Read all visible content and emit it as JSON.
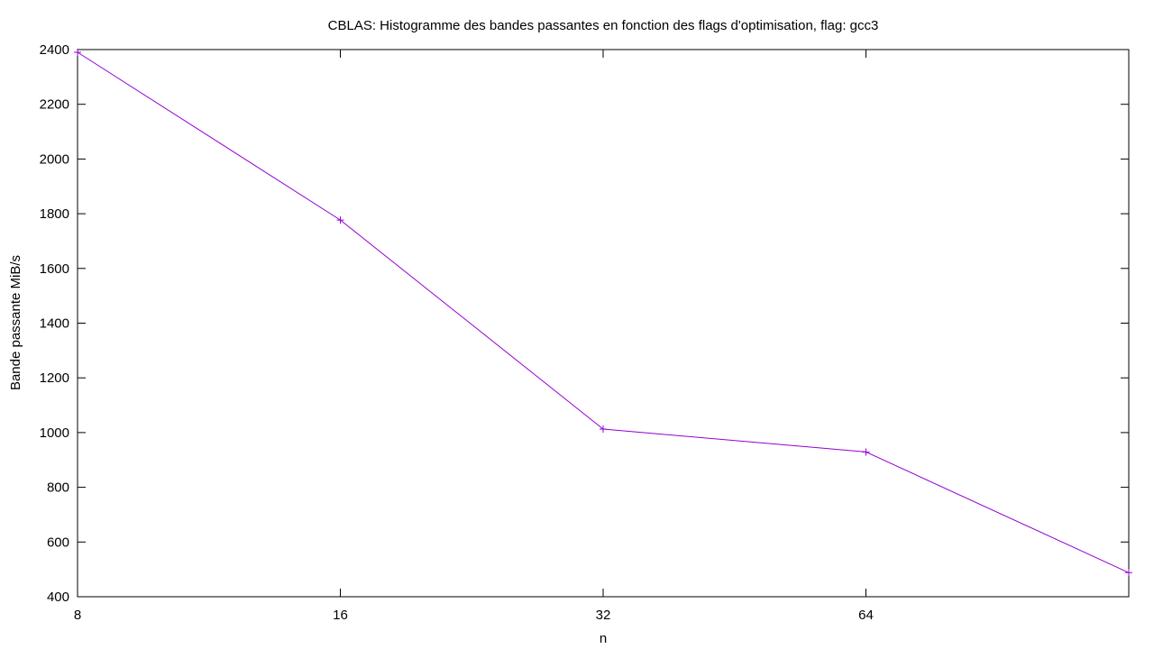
{
  "chart_data": {
    "type": "line",
    "title": "CBLAS: Histogramme des bandes passantes en fonction des flags d'optimisation, flag: gcc3",
    "xlabel": "n",
    "ylabel": "Bande passante MiB/s",
    "x_scale": "log2",
    "x_ticks": [
      8,
      16,
      32,
      64
    ],
    "x_tick_labels": [
      "8",
      "16",
      "32",
      "64"
    ],
    "xlim": [
      8,
      128
    ],
    "ylim": [
      400,
      2400
    ],
    "y_ticks": [
      400,
      600,
      800,
      1000,
      1200,
      1400,
      1600,
      1800,
      2000,
      2200,
      2400
    ],
    "y_tick_labels": [
      "400",
      "600",
      "800",
      "1000",
      "1200",
      "1400",
      "1600",
      "1800",
      "2000",
      "2200",
      "2400"
    ],
    "grid": false,
    "series": [
      {
        "color": "#9400d3",
        "marker": "plus",
        "x": [
          8,
          16,
          32,
          64,
          128
        ],
        "y": [
          2390,
          1777,
          1013,
          929,
          488
        ]
      }
    ]
  }
}
